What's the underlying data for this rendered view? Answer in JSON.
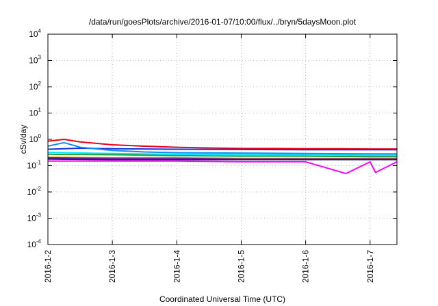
{
  "chart_data": {
    "type": "line",
    "title": "/data/run/goesPlots/archive/2016-01-07/10:00/flux/../bryn/5daysMoon.plot",
    "xlabel": "Coordinated Universal Time (UTC)",
    "ylabel": "cSv/day",
    "yscale": "log",
    "ylim": [
      0.0001,
      10000
    ],
    "xlim": [
      "2016-01-02 00:00",
      "2016-01-07 10:00"
    ],
    "grid": "dotted",
    "y_ticks": [
      {
        "value": 0.0001,
        "base": "10",
        "exp": "-4"
      },
      {
        "value": 0.001,
        "base": "10",
        "exp": "-3"
      },
      {
        "value": 0.01,
        "base": "10",
        "exp": "-2"
      },
      {
        "value": 0.1,
        "base": "10",
        "exp": "-1"
      },
      {
        "value": 1,
        "base": "10",
        "exp": "0"
      },
      {
        "value": 10,
        "base": "10",
        "exp": "1"
      },
      {
        "value": 100,
        "base": "10",
        "exp": "2"
      },
      {
        "value": 1000,
        "base": "10",
        "exp": "3"
      },
      {
        "value": 10000,
        "base": "10",
        "exp": "4"
      }
    ],
    "x_ticks": [
      "2016-1-2",
      "2016-1-3",
      "2016-1-4",
      "2016-1-5",
      "2016-1-6",
      "2016-1-7"
    ],
    "series": [
      {
        "color": "#e8001a",
        "points": [
          [
            "2016-01-02 00:00",
            0.85
          ],
          [
            "2016-01-02 06:00",
            1.0
          ],
          [
            "2016-01-02 12:00",
            0.8
          ],
          [
            "2016-01-03 00:00",
            0.62
          ],
          [
            "2016-01-03 12:00",
            0.55
          ],
          [
            "2016-01-04 00:00",
            0.5
          ],
          [
            "2016-01-04 12:00",
            0.47
          ],
          [
            "2016-01-05 00:00",
            0.45
          ],
          [
            "2016-01-05 12:00",
            0.45
          ],
          [
            "2016-01-06 00:00",
            0.44
          ],
          [
            "2016-01-06 12:00",
            0.44
          ],
          [
            "2016-01-07 00:00",
            0.43
          ],
          [
            "2016-01-07 10:00",
            0.43
          ]
        ]
      },
      {
        "color": "#1a2ee0",
        "points": [
          [
            "2016-01-02 00:00",
            0.42
          ],
          [
            "2016-01-02 12:00",
            0.46
          ],
          [
            "2016-01-03 00:00",
            0.44
          ],
          [
            "2016-01-04 00:00",
            0.42
          ],
          [
            "2016-01-05 00:00",
            0.41
          ],
          [
            "2016-01-06 00:00",
            0.4
          ],
          [
            "2016-01-07 00:00",
            0.4
          ],
          [
            "2016-01-07 10:00",
            0.4
          ]
        ]
      },
      {
        "color": "#0a8cf0",
        "points": [
          [
            "2016-01-02 00:00",
            0.55
          ],
          [
            "2016-01-02 06:00",
            0.75
          ],
          [
            "2016-01-02 12:00",
            0.5
          ],
          [
            "2016-01-03 00:00",
            0.38
          ],
          [
            "2016-01-03 12:00",
            0.33
          ],
          [
            "2016-01-04 00:00",
            0.31
          ],
          [
            "2016-01-05 00:00",
            0.3
          ],
          [
            "2016-01-06 00:00",
            0.29
          ],
          [
            "2016-01-07 00:00",
            0.28
          ],
          [
            "2016-01-07 10:00",
            0.28
          ]
        ]
      },
      {
        "color": "#00e5ff",
        "points": [
          [
            "2016-01-02 00:00",
            0.32
          ],
          [
            "2016-01-03 00:00",
            0.29
          ],
          [
            "2016-01-04 00:00",
            0.27
          ],
          [
            "2016-01-05 00:00",
            0.26
          ],
          [
            "2016-01-06 00:00",
            0.26
          ],
          [
            "2016-01-07 00:00",
            0.25
          ],
          [
            "2016-01-07 10:00",
            0.25
          ]
        ]
      },
      {
        "color": "#1fa03c",
        "points": [
          [
            "2016-01-02 00:00",
            0.27
          ],
          [
            "2016-01-03 00:00",
            0.26
          ],
          [
            "2016-01-04 00:00",
            0.24
          ],
          [
            "2016-01-05 00:00",
            0.23
          ],
          [
            "2016-01-06 00:00",
            0.23
          ],
          [
            "2016-01-07 00:00",
            0.22
          ],
          [
            "2016-01-07 10:00",
            0.22
          ]
        ]
      },
      {
        "color": "#ff9a00",
        "points": [
          [
            "2016-01-02 00:00",
            0.21
          ],
          [
            "2016-01-03 00:00",
            0.2
          ],
          [
            "2016-01-04 00:00",
            0.2
          ],
          [
            "2016-01-05 00:00",
            0.19
          ],
          [
            "2016-01-06 00:00",
            0.19
          ],
          [
            "2016-01-07 00:00",
            0.19
          ],
          [
            "2016-01-07 10:00",
            0.19
          ]
        ]
      },
      {
        "color": "#7a1fa6",
        "points": [
          [
            "2016-01-02 00:00",
            0.2
          ],
          [
            "2016-01-03 00:00",
            0.19
          ],
          [
            "2016-01-04 00:00",
            0.19
          ],
          [
            "2016-01-05 00:00",
            0.18
          ],
          [
            "2016-01-06 00:00",
            0.18
          ],
          [
            "2016-01-07 00:00",
            0.18
          ],
          [
            "2016-01-07 10:00",
            0.18
          ]
        ]
      },
      {
        "color": "#1a1a7a",
        "points": [
          [
            "2016-01-02 00:00",
            0.18
          ],
          [
            "2016-01-03 00:00",
            0.17
          ],
          [
            "2016-01-04 00:00",
            0.17
          ],
          [
            "2016-01-05 00:00",
            0.17
          ],
          [
            "2016-01-06 00:00",
            0.17
          ],
          [
            "2016-01-07 00:00",
            0.17
          ],
          [
            "2016-01-07 10:00",
            0.17
          ]
        ]
      },
      {
        "color": "#ff00ff",
        "points": [
          [
            "2016-01-02 00:00",
            0.15
          ],
          [
            "2016-01-03 00:00",
            0.15
          ],
          [
            "2016-01-04 00:00",
            0.15
          ],
          [
            "2016-01-05 00:00",
            0.14
          ],
          [
            "2016-01-06 00:00",
            0.14
          ],
          [
            "2016-01-06 15:00",
            0.05
          ],
          [
            "2016-01-07 00:00",
            0.14
          ],
          [
            "2016-01-07 02:00",
            0.055
          ],
          [
            "2016-01-07 10:00",
            0.14
          ]
        ]
      }
    ]
  }
}
